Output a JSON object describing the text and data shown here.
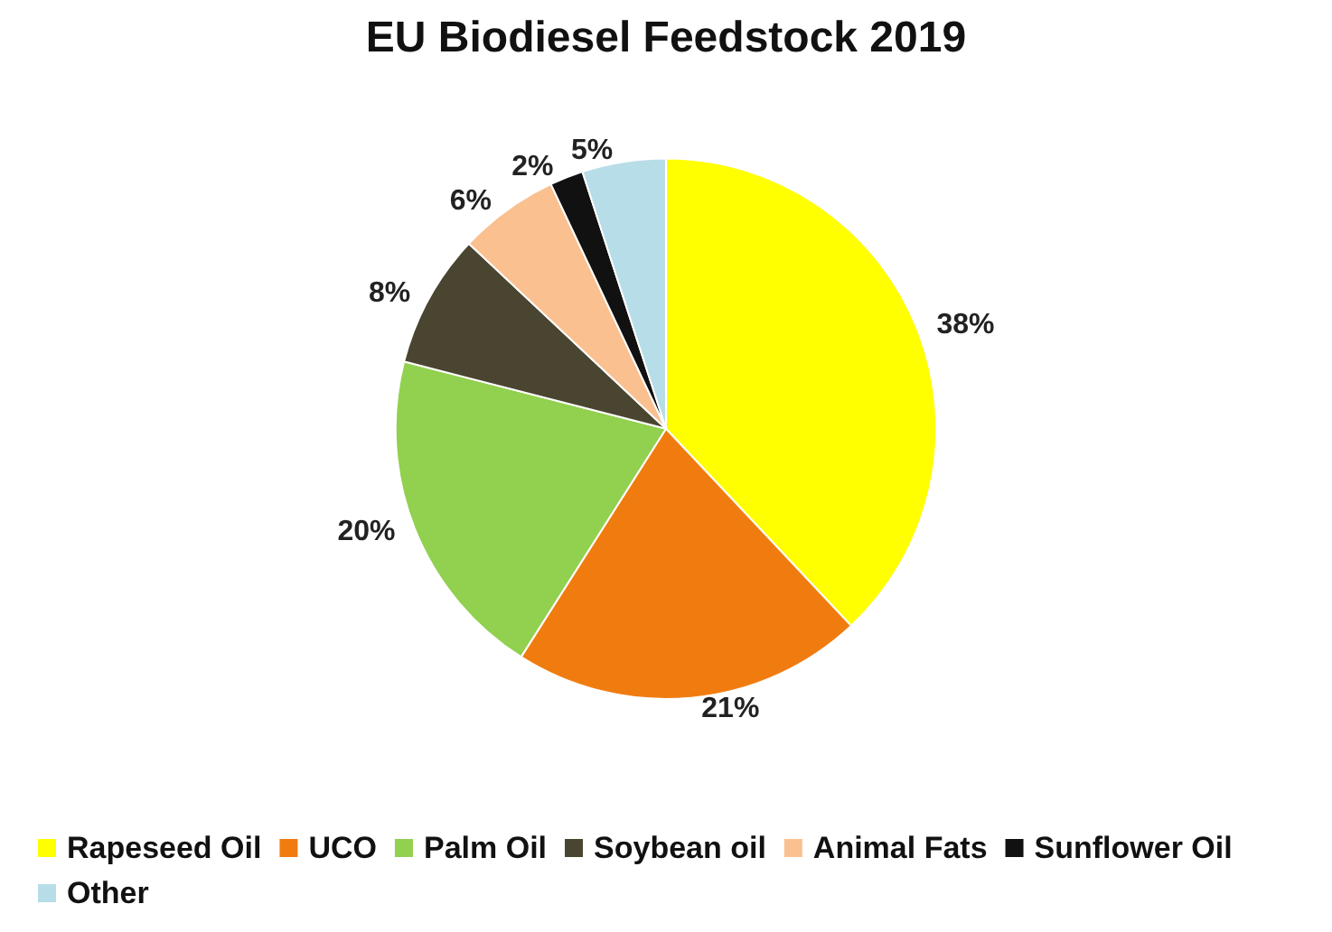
{
  "chart_data": {
    "type": "pie",
    "title": "EU Biodiesel Feedstock 2019",
    "categories": [
      "Rapeseed Oil",
      "UCO",
      "Palm Oil",
      "Soybean oil",
      "Animal Fats",
      "Sunflower Oil",
      "Other"
    ],
    "values": [
      38,
      21,
      20,
      8,
      6,
      2,
      5
    ],
    "colors": [
      "#ffff00",
      "#f07c10",
      "#92d050",
      "#4a4530",
      "#fac090",
      "#111111",
      "#b7dde8"
    ],
    "value_labels": [
      "38%",
      "21%",
      "20%",
      "8%",
      "6%",
      "2%",
      "5%"
    ],
    "legend": "bottom"
  }
}
